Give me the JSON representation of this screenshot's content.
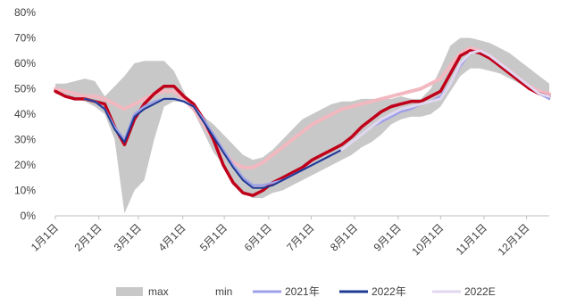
{
  "chart_data": {
    "type": "line",
    "y_ticks": [
      "0%",
      "10%",
      "20%",
      "30%",
      "40%",
      "50%",
      "60%",
      "70%",
      "80%"
    ],
    "ylim": [
      0,
      80
    ],
    "x_ticks": [
      "1月1日",
      "2月1日",
      "3月1日",
      "4月1日",
      "5月1日",
      "6月1日",
      "7月1日",
      "8月1日",
      "9月1日",
      "10月1日",
      "11月1日",
      "12月1日"
    ],
    "x_range_weeks": [
      0,
      50
    ],
    "grid": false,
    "legend_position": "bottom",
    "series": [
      {
        "name": "max",
        "kind": "band-upper",
        "color": "#c8c8c8",
        "points": [
          [
            0,
            52
          ],
          [
            1,
            52
          ],
          [
            2,
            53
          ],
          [
            3,
            54
          ],
          [
            4,
            53
          ],
          [
            5,
            47
          ],
          [
            6,
            51
          ],
          [
            7,
            55
          ],
          [
            8,
            60
          ],
          [
            9,
            61
          ],
          [
            10,
            61
          ],
          [
            11,
            61
          ],
          [
            12,
            57
          ],
          [
            13,
            49
          ],
          [
            14,
            41
          ],
          [
            15,
            39
          ],
          [
            16,
            36
          ],
          [
            17,
            32
          ],
          [
            18,
            28
          ],
          [
            19,
            24
          ],
          [
            20,
            22
          ],
          [
            21,
            23
          ],
          [
            22,
            26
          ],
          [
            23,
            30
          ],
          [
            24,
            34
          ],
          [
            25,
            38
          ],
          [
            26,
            40
          ],
          [
            27,
            42
          ],
          [
            28,
            44
          ],
          [
            29,
            45
          ],
          [
            30,
            45
          ],
          [
            31,
            46
          ],
          [
            32,
            46
          ],
          [
            33,
            46
          ],
          [
            34,
            46
          ],
          [
            35,
            47
          ],
          [
            36,
            46
          ],
          [
            37,
            46
          ],
          [
            38,
            50
          ],
          [
            39,
            58
          ],
          [
            40,
            67
          ],
          [
            41,
            70
          ],
          [
            42,
            70
          ],
          [
            43,
            69
          ],
          [
            44,
            68
          ],
          [
            45,
            66
          ],
          [
            46,
            64
          ],
          [
            47,
            61
          ],
          [
            48,
            58
          ],
          [
            49,
            55
          ],
          [
            50,
            52
          ]
        ]
      },
      {
        "name": "min",
        "kind": "band-lower",
        "color": "#ffffff",
        "points": [
          [
            0,
            48
          ],
          [
            1,
            47
          ],
          [
            2,
            46
          ],
          [
            3,
            45
          ],
          [
            4,
            43
          ],
          [
            5,
            40
          ],
          [
            6,
            30
          ],
          [
            7,
            1
          ],
          [
            8,
            10
          ],
          [
            9,
            14
          ],
          [
            10,
            30
          ],
          [
            11,
            43
          ],
          [
            12,
            45
          ],
          [
            13,
            45
          ],
          [
            14,
            41
          ],
          [
            15,
            33
          ],
          [
            16,
            25
          ],
          [
            17,
            20
          ],
          [
            18,
            14
          ],
          [
            19,
            9
          ],
          [
            20,
            7
          ],
          [
            21,
            7
          ],
          [
            22,
            9
          ],
          [
            23,
            10
          ],
          [
            24,
            12
          ],
          [
            25,
            14
          ],
          [
            26,
            16
          ],
          [
            27,
            18
          ],
          [
            28,
            20
          ],
          [
            29,
            22
          ],
          [
            30,
            24
          ],
          [
            31,
            27
          ],
          [
            32,
            29
          ],
          [
            33,
            32
          ],
          [
            34,
            36
          ],
          [
            35,
            38
          ],
          [
            36,
            39
          ],
          [
            37,
            39
          ],
          [
            38,
            40
          ],
          [
            39,
            43
          ],
          [
            40,
            49
          ],
          [
            41,
            55
          ],
          [
            42,
            58
          ],
          [
            43,
            58
          ],
          [
            44,
            57
          ],
          [
            45,
            56
          ],
          [
            46,
            54
          ],
          [
            47,
            52
          ],
          [
            48,
            50
          ],
          [
            49,
            48
          ],
          [
            50,
            47
          ]
        ]
      },
      {
        "name": "2021年",
        "color": "#9ea0e8",
        "points": [
          [
            3,
            46
          ],
          [
            4,
            45
          ],
          [
            5,
            42
          ],
          [
            6,
            35
          ],
          [
            7,
            30
          ],
          [
            8,
            40
          ],
          [
            9,
            43
          ],
          [
            10,
            45
          ],
          [
            11,
            46
          ],
          [
            12,
            46
          ],
          [
            13,
            45
          ],
          [
            14,
            43
          ],
          [
            15,
            38
          ],
          [
            16,
            32
          ],
          [
            17,
            26
          ],
          [
            18,
            20
          ],
          [
            19,
            15
          ],
          [
            20,
            12
          ],
          [
            21,
            12
          ],
          [
            22,
            13
          ],
          [
            23,
            14
          ],
          [
            24,
            16
          ],
          [
            25,
            18
          ],
          [
            26,
            20
          ],
          [
            27,
            22
          ],
          [
            28,
            24
          ],
          [
            29,
            26
          ],
          [
            30,
            29
          ],
          [
            31,
            32
          ],
          [
            32,
            35
          ],
          [
            33,
            37
          ],
          [
            34,
            39
          ],
          [
            35,
            41
          ],
          [
            36,
            42
          ],
          [
            37,
            44
          ],
          [
            38,
            45
          ],
          [
            39,
            47
          ],
          [
            40,
            52
          ],
          [
            41,
            59
          ],
          [
            42,
            64
          ],
          [
            43,
            65
          ],
          [
            44,
            63
          ],
          [
            45,
            60
          ],
          [
            46,
            57
          ],
          [
            47,
            54
          ],
          [
            48,
            51
          ],
          [
            49,
            48
          ],
          [
            50,
            46
          ]
        ]
      },
      {
        "name": "2022年",
        "color": "#1f3a93",
        "points": [
          [
            3,
            46
          ],
          [
            4,
            45
          ],
          [
            5,
            42
          ],
          [
            6,
            34
          ],
          [
            7,
            29
          ],
          [
            8,
            39
          ],
          [
            9,
            42
          ],
          [
            10,
            44
          ],
          [
            11,
            46
          ],
          [
            12,
            46
          ],
          [
            13,
            45
          ],
          [
            14,
            43
          ],
          [
            15,
            37
          ],
          [
            16,
            31
          ],
          [
            17,
            25
          ],
          [
            18,
            19
          ],
          [
            19,
            14
          ],
          [
            20,
            11
          ],
          [
            21,
            11
          ],
          [
            22,
            12
          ],
          [
            23,
            14
          ],
          [
            24,
            16
          ],
          [
            25,
            18
          ],
          [
            26,
            20
          ],
          [
            27,
            22
          ],
          [
            28,
            24
          ],
          [
            29,
            26
          ]
        ]
      },
      {
        "name": "2022E",
        "color": "#e0d8f0",
        "points": [
          [
            29,
            26
          ],
          [
            30,
            29
          ],
          [
            31,
            32
          ],
          [
            32,
            35
          ],
          [
            33,
            38
          ],
          [
            34,
            40
          ],
          [
            35,
            42
          ],
          [
            36,
            43
          ],
          [
            37,
            44
          ],
          [
            38,
            45
          ],
          [
            39,
            46
          ],
          [
            40,
            52
          ],
          [
            41,
            60
          ],
          [
            42,
            64
          ],
          [
            43,
            65
          ],
          [
            44,
            63
          ],
          [
            45,
            60
          ],
          [
            46,
            57
          ],
          [
            47,
            54
          ],
          [
            48,
            51
          ],
          [
            49,
            48
          ],
          [
            50,
            47
          ]
        ]
      },
      {
        "name": "",
        "color": "#c0001a",
        "points": [
          [
            0,
            49
          ],
          [
            1,
            47
          ],
          [
            2,
            46
          ],
          [
            3,
            46
          ],
          [
            4,
            45
          ],
          [
            5,
            44
          ],
          [
            6,
            35
          ],
          [
            7,
            28
          ],
          [
            8,
            38
          ],
          [
            9,
            44
          ],
          [
            10,
            48
          ],
          [
            11,
            51
          ],
          [
            12,
            51
          ],
          [
            13,
            47
          ],
          [
            14,
            44
          ],
          [
            15,
            38
          ],
          [
            16,
            30
          ],
          [
            17,
            20
          ],
          [
            18,
            13
          ],
          [
            19,
            9
          ],
          [
            20,
            8
          ],
          [
            21,
            10
          ],
          [
            22,
            13
          ],
          [
            23,
            15
          ],
          [
            24,
            17
          ],
          [
            25,
            19
          ],
          [
            26,
            22
          ],
          [
            27,
            24
          ],
          [
            28,
            26
          ],
          [
            29,
            28
          ],
          [
            30,
            31
          ],
          [
            31,
            35
          ],
          [
            32,
            38
          ],
          [
            33,
            41
          ],
          [
            34,
            43
          ],
          [
            35,
            44
          ],
          [
            36,
            45
          ],
          [
            37,
            45
          ],
          [
            38,
            47
          ],
          [
            39,
            49
          ],
          [
            40,
            56
          ],
          [
            41,
            63
          ],
          [
            42,
            65
          ],
          [
            43,
            64
          ],
          [
            44,
            62
          ],
          [
            45,
            59
          ],
          [
            46,
            56
          ],
          [
            47,
            53
          ],
          [
            48,
            50
          ],
          [
            49,
            48
          ],
          [
            50,
            47
          ]
        ]
      },
      {
        "name": "",
        "color": "#f2b8c0",
        "points": [
          [
            0,
            50
          ],
          [
            1,
            49
          ],
          [
            2,
            48
          ],
          [
            3,
            47
          ],
          [
            4,
            47
          ],
          [
            5,
            46
          ],
          [
            6,
            44
          ],
          [
            7,
            42
          ],
          [
            8,
            44
          ],
          [
            9,
            46
          ],
          [
            10,
            48
          ],
          [
            11,
            49
          ],
          [
            12,
            49
          ],
          [
            13,
            46
          ],
          [
            14,
            42
          ],
          [
            15,
            36
          ],
          [
            16,
            30
          ],
          [
            17,
            25
          ],
          [
            18,
            21
          ],
          [
            19,
            19
          ],
          [
            20,
            19
          ],
          [
            21,
            21
          ],
          [
            22,
            24
          ],
          [
            23,
            27
          ],
          [
            24,
            30
          ],
          [
            25,
            33
          ],
          [
            26,
            36
          ],
          [
            27,
            38
          ],
          [
            28,
            40
          ],
          [
            29,
            42
          ],
          [
            30,
            43
          ],
          [
            31,
            44
          ],
          [
            32,
            45
          ],
          [
            33,
            46
          ],
          [
            34,
            47
          ],
          [
            35,
            48
          ],
          [
            36,
            49
          ],
          [
            37,
            50
          ],
          [
            38,
            52
          ],
          [
            39,
            54
          ],
          [
            40,
            59
          ],
          [
            41,
            64
          ],
          [
            42,
            66
          ],
          [
            43,
            65
          ],
          [
            44,
            63
          ],
          [
            45,
            60
          ],
          [
            46,
            57
          ],
          [
            47,
            54
          ],
          [
            48,
            51
          ],
          [
            49,
            49
          ],
          [
            50,
            48
          ]
        ]
      }
    ],
    "legend": [
      {
        "label": "max",
        "kind": "rect",
        "color": "#c8c8c8"
      },
      {
        "label": "min",
        "kind": "rect",
        "color": "#ffffff"
      },
      {
        "label": "2021年",
        "kind": "line",
        "color": "#9ea0e8"
      },
      {
        "label": "2022年",
        "kind": "line",
        "color": "#1f3a93"
      },
      {
        "label": "2022E",
        "kind": "line",
        "color": "#e0d8f0"
      }
    ]
  }
}
